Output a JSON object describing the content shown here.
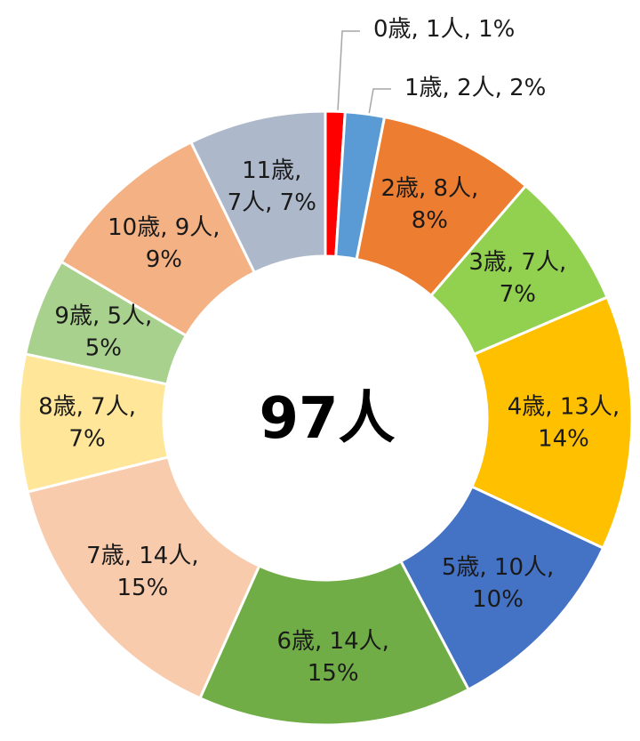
{
  "chart_data": {
    "type": "donut",
    "center_label": "97人",
    "values": [
      1,
      2,
      8,
      7,
      13,
      10,
      14,
      14,
      7,
      5,
      9,
      7
    ],
    "value_labels": [
      [
        "0歳, 1人, 1%"
      ],
      [
        "1歳, 2人, 2%"
      ],
      [
        "2歳, 8人,",
        "8%"
      ],
      [
        "3歳, 7人,",
        "7%"
      ],
      [
        "4歳, 13人,",
        "14%"
      ],
      [
        "5歳, 10人,",
        "10%"
      ],
      [
        "6歳, 14人,",
        "15%"
      ],
      [
        "7歳, 14人,",
        "15%"
      ],
      [
        "8歳, 7人,",
        "7%"
      ],
      [
        "9歳, 5人,",
        "5%"
      ],
      [
        "10歳, 9人,",
        "9%"
      ],
      [
        "11歳,",
        "7人, 7%"
      ]
    ],
    "colors": [
      "#ff0000",
      "#5b9bd5",
      "#ed7d31",
      "#92d050",
      "#ffc000",
      "#4472c4",
      "#70ad47",
      "#f8cbad",
      "#ffe699",
      "#a9d18e",
      "#f4b183",
      "#adb9ca"
    ]
  }
}
